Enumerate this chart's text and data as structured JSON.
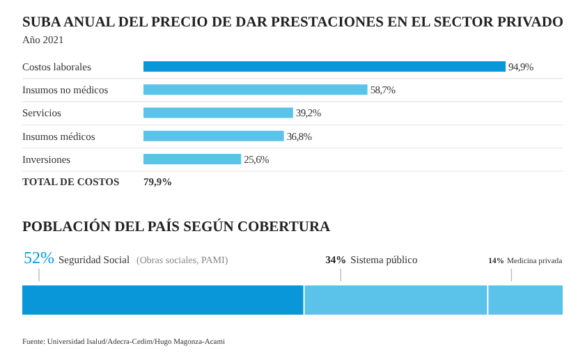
{
  "chart_data": [
    {
      "type": "bar",
      "orientation": "horizontal",
      "title": "SUBA ANUAL DEL PRECIO DE DAR PRESTACIONES EN EL SECTOR PRIVADO",
      "subtitle": "Año 2021",
      "categories": [
        "Costos laborales",
        "Insumos no médicos",
        "Servicios",
        "Insumos médicos",
        "Inversiones"
      ],
      "values": [
        94.9,
        58.7,
        39.2,
        36.8,
        25.6
      ],
      "colors": [
        "#0a97d9",
        "#5bc3ea",
        "#5bc3ea",
        "#5bc3ea",
        "#5bc3ea"
      ],
      "value_labels": [
        "94,9%",
        "58,7%",
        "39,2%",
        "36,8%",
        "25,6%"
      ],
      "annotations": [
        "TOTAL DE COSTOS",
        "79,9%"
      ]
    },
    {
      "type": "bar",
      "orientation": "horizontal",
      "stacked": true,
      "title": "POBLACIÓN DEL PAÍS SEGÚN COBERTURA",
      "categories": [
        null
      ],
      "series": [
        {
          "name": "Seguridad Social",
          "color": "#0a97d9",
          "values": [
            52
          ],
          "value_labels": [
            "52%"
          ]
        },
        {
          "name": "Sistema público",
          "color": "#5bc3ea",
          "values": [
            34
          ],
          "value_labels": [
            "34%"
          ]
        },
        {
          "name": "Medicina privada",
          "color": "#5bc3ea",
          "values": [
            14
          ],
          "value_labels": [
            "14%"
          ]
        }
      ],
      "annotations": [
        "(Obras sociales, PAMI)",
        "Fuente: Universidad Isalud/Adecra-Cedim/Hugo Magonza-Acami"
      ]
    }
  ]
}
